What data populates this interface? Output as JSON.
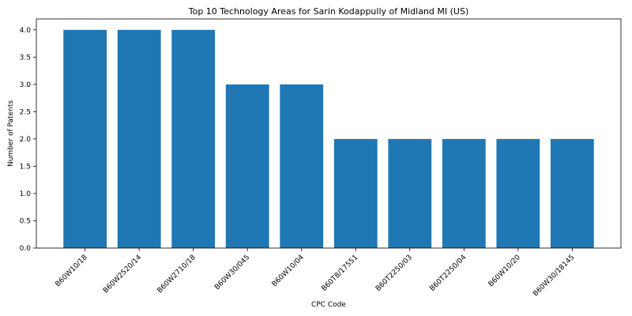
{
  "chart_data": {
    "type": "bar",
    "title": "Top 10 Technology Areas for Sarin Kodappully of Midland MI (US)",
    "xlabel": "CPC Code",
    "ylabel": "Number of Patents",
    "categories": [
      "B60W10/18",
      "B60W2520/14",
      "B60W2710/18",
      "B60W30/045",
      "B60W10/04",
      "B60T8/17551",
      "B60T2250/03",
      "B60T2250/04",
      "B60W10/20",
      "B60W30/18145"
    ],
    "values": [
      4,
      4,
      4,
      3,
      3,
      2,
      2,
      2,
      2,
      2
    ],
    "yticks": [
      "0.0",
      "0.5",
      "1.0",
      "1.5",
      "2.0",
      "2.5",
      "3.0",
      "3.5",
      "4.0"
    ],
    "ylim": [
      0,
      4.2
    ],
    "bar_color": "#1f77b4",
    "grid": false,
    "legend": "none"
  }
}
